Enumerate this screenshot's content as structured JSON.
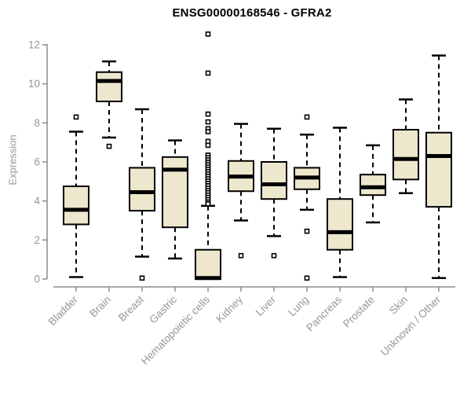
{
  "title": "ENSG00000168546 - GFRA2",
  "chart_data": {
    "type": "boxplot",
    "title": "ENSG00000168546 - GFRA2",
    "xlabel": "",
    "ylabel": "Expression",
    "ylim": [
      0,
      12
    ],
    "yticks": [
      0,
      2,
      4,
      6,
      8,
      10,
      12
    ],
    "grid": false,
    "legend": "none",
    "categories": [
      "Bladder",
      "Brain",
      "Breast",
      "Gastric",
      "Hematopoietic cells",
      "Kidney",
      "Liver",
      "Lung",
      "Pancreas",
      "Prostate",
      "Skin",
      "Unknown / Other"
    ],
    "boxes": [
      {
        "category": "Bladder",
        "whisker_low": 0.1,
        "q1": 2.8,
        "median": 3.55,
        "q3": 4.75,
        "whisker_high": 7.55,
        "outliers": [
          8.3
        ]
      },
      {
        "category": "Brain",
        "whisker_low": 7.25,
        "q1": 9.1,
        "median": 10.15,
        "q3": 10.6,
        "whisker_high": 11.15,
        "outliers": [
          6.8
        ]
      },
      {
        "category": "Breast",
        "whisker_low": 1.15,
        "q1": 3.5,
        "median": 4.45,
        "q3": 5.7,
        "whisker_high": 8.7,
        "outliers": [
          0.05
        ]
      },
      {
        "category": "Gastric",
        "whisker_low": 1.05,
        "q1": 2.65,
        "median": 5.6,
        "q3": 6.25,
        "whisker_high": 7.1,
        "outliers": []
      },
      {
        "category": "Hematopoietic cells",
        "whisker_low": 0.0,
        "q1": 0.0,
        "median": 0.05,
        "q3": 1.5,
        "whisker_high": 3.75,
        "outliers": [
          12.55,
          10.55,
          8.45,
          8.05,
          7.7,
          7.55,
          7.05,
          6.85,
          6.35,
          6.22,
          6.1,
          5.98,
          5.86,
          5.74,
          5.62,
          5.5,
          5.38,
          5.26,
          5.14,
          5.02,
          4.9,
          4.78,
          4.66,
          4.54,
          4.42,
          4.3,
          4.18,
          4.06,
          3.94,
          3.85
        ]
      },
      {
        "category": "Kidney",
        "whisker_low": 3.0,
        "q1": 4.5,
        "median": 5.25,
        "q3": 6.05,
        "whisker_high": 7.95,
        "outliers": [
          1.2
        ]
      },
      {
        "category": "Liver",
        "whisker_low": 2.2,
        "q1": 4.1,
        "median": 4.85,
        "q3": 6.0,
        "whisker_high": 7.7,
        "outliers": [
          1.2
        ]
      },
      {
        "category": "Lung",
        "whisker_low": 3.55,
        "q1": 4.6,
        "median": 5.2,
        "q3": 5.7,
        "whisker_high": 7.4,
        "outliers": [
          8.3,
          2.45,
          0.05
        ]
      },
      {
        "category": "Pancreas",
        "whisker_low": 0.1,
        "q1": 1.5,
        "median": 2.4,
        "q3": 4.1,
        "whisker_high": 7.75,
        "outliers": []
      },
      {
        "category": "Prostate",
        "whisker_low": 2.9,
        "q1": 4.3,
        "median": 4.7,
        "q3": 5.35,
        "whisker_high": 6.85,
        "outliers": []
      },
      {
        "category": "Skin",
        "whisker_low": 4.4,
        "q1": 5.1,
        "median": 6.15,
        "q3": 7.65,
        "whisker_high": 9.2,
        "outliers": []
      },
      {
        "category": "Unknown / Other",
        "whisker_low": 0.05,
        "q1": 3.7,
        "median": 6.3,
        "q3": 7.5,
        "whisker_high": 11.45,
        "outliers": []
      }
    ],
    "colors": {
      "box_fill": "#EDE7CE",
      "box_border": "#000000",
      "median": "#000000",
      "whisker": "#000000",
      "axis": "#8C8C8C",
      "tick_label": "#969696",
      "title": "#000000",
      "background": "#FFFFFF"
    }
  }
}
